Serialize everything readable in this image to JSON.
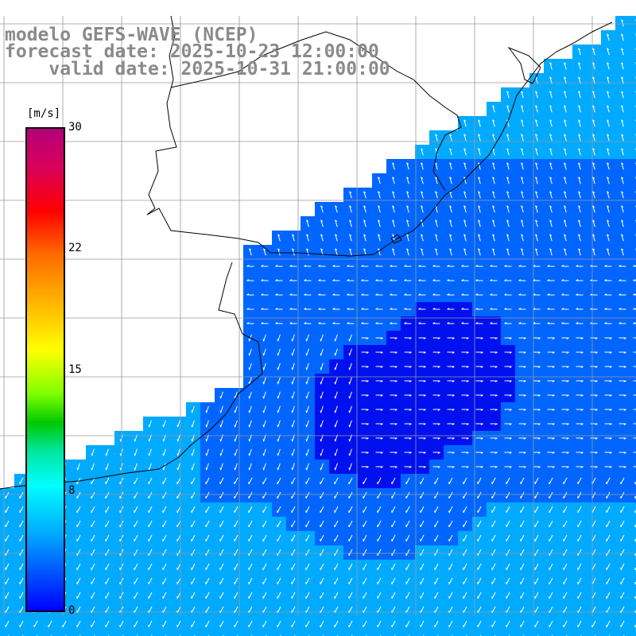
{
  "title": {
    "line1": "modelo GEFS-WAVE (NCEP)",
    "line2": "forecast date: 2025-10-23 12:00:00",
    "line3": "    valid date: 2025-10-31 21:00:00"
  },
  "colorbar": {
    "unit": "[m/s]",
    "ticks": [
      "30",
      "22",
      "15",
      "8",
      "0"
    ],
    "tick_values": [
      30,
      22,
      15,
      8,
      0
    ],
    "range": [
      0,
      30
    ],
    "colors": {
      "top": "#b4007a",
      "red": "#ff0000",
      "orange": "#ff6a00",
      "yellow": "#ffff00",
      "green": "#00c800",
      "cyan": "#00ffff",
      "blue": "#0000ff"
    }
  },
  "map": {
    "land_color": "#ffffff",
    "grid_color": "#9a9a9a",
    "coast_color": "#000000",
    "wind_arrow_color": "#ffffff",
    "field_colors": {
      "weak": "#0010ee",
      "medium": "#0066ff",
      "strong": "#00aaff",
      "strongest": "#00c8ff"
    }
  }
}
